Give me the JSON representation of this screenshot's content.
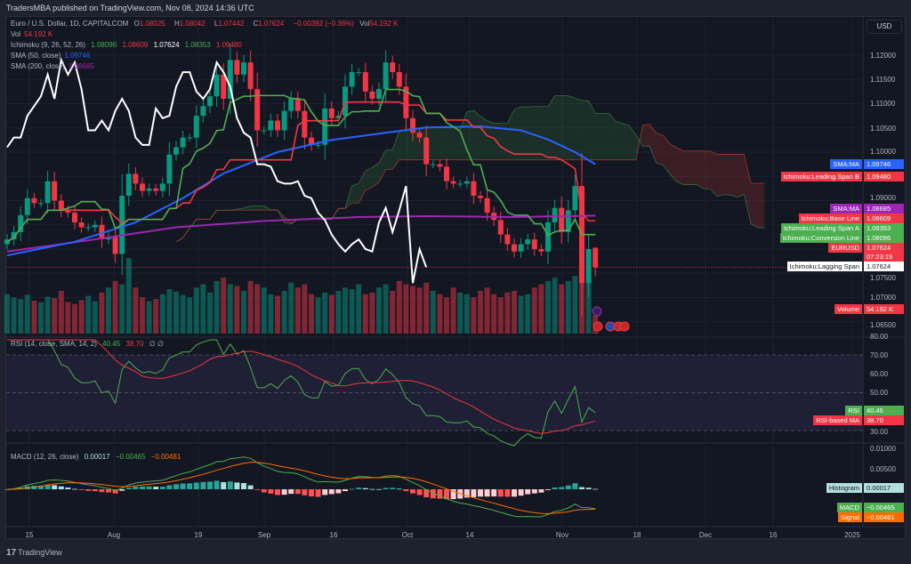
{
  "header": {
    "published": "TradersMBA published on TradingView.com, Nov 08, 2024 14:36 UTC"
  },
  "legend": {
    "symbol": "Euro / U.S. Dollar, 1D, CAPITALCOM",
    "o_label": "O",
    "o": "1.08025",
    "h_label": "H",
    "h": "1.08042",
    "l_label": "L",
    "l": "1.07442",
    "c_label": "C",
    "c": "1.07624",
    "change": "−0.00392 (−0.36%)",
    "vol_label": "Vol",
    "vol": "54.192 K",
    "vol_line_label": "Vol",
    "vol_line_value": "54.192 K",
    "ichimoku_label": "Ichimoku (9, 26, 52, 26)",
    "ichimoku_values": [
      "1.08096",
      "1.08609",
      "1.07624",
      "1.08353",
      "1.09480"
    ],
    "sma50_label": "SMA (50, close)",
    "sma50": "1.09746",
    "sma200_label": "SMA (200, close)",
    "sma200": "1.08685",
    "rsi_label": "RSI (14, close, SMA, 14, 2)",
    "rsi": "40.45",
    "rsi_ma": "38.70",
    "rsi_extra": "∅ ∅",
    "macd_label": "MACD (12, 26, close)",
    "macd_hist": "0.00017",
    "macd": "−0.00465",
    "macd_signal": "−0.00481"
  },
  "currency": "USD",
  "colors": {
    "up": "#089981",
    "down": "#f23645",
    "sma50": "#2962ff",
    "sma200": "#9c27b0",
    "conversion": "#4caf50",
    "base": "#f23645",
    "lagging": "#ffffff",
    "rsi": "#4caf50",
    "rsi_ma": "#f23645",
    "macd": "#4caf50",
    "signal": "#ff6d00"
  },
  "price_tags": [
    {
      "label": "SMA:MA",
      "value": "1.09746",
      "color": "#2962ff"
    },
    {
      "label": "Ichimoku:Leading Span B",
      "value": "1.09480",
      "color": "#f23645"
    },
    {
      "label": "SMA:MA",
      "value": "1.08685",
      "color": "#9c27b0"
    },
    {
      "label": "Ichimoku:Base Line",
      "value": "1.08609",
      "color": "#f23645"
    },
    {
      "label": "Ichimoku:Leading Span A",
      "value": "1.08353",
      "color": "#4caf50"
    },
    {
      "label": "Ichimoku:Conversion Line",
      "value": "1.08096",
      "color": "#4caf50"
    },
    {
      "label": "EURUSD",
      "value": "1.07624",
      "extra": "07:23:19",
      "color": "#f23645"
    },
    {
      "label": "Ichimoku:Lagging Span",
      "value": "1.07624",
      "color": "#ffffff"
    },
    {
      "label": "Volume",
      "value": "54.192 K",
      "color": "#f23645"
    }
  ],
  "rsi_tags": [
    {
      "label": "RSI",
      "value": "40.45",
      "color": "#4caf50"
    },
    {
      "label": "RSI-based MA",
      "value": "38.70",
      "color": "#f23645"
    }
  ],
  "macd_tags": [
    {
      "label": "Histogram",
      "value": "0.00017",
      "color": "#b2dfdb"
    },
    {
      "label": "MACD",
      "value": "−0.00465",
      "color": "#4caf50"
    },
    {
      "label": "Signal",
      "value": "−0.00481",
      "color": "#ff6d00"
    }
  ],
  "price_axis": [
    "1.12000",
    "1.11500",
    "1.11000",
    "1.10500",
    "1.10000",
    "1.09000",
    "1.07500",
    "1.07000",
    "1.06500"
  ],
  "rsi_axis": [
    "80.00",
    "70.00",
    "60.00",
    "50.00",
    "30.00"
  ],
  "macd_axis": [
    "0.01000",
    "0.00500"
  ],
  "time_axis": [
    "15",
    "Aug",
    "19",
    "Sep",
    "16",
    "Oct",
    "14",
    "Nov",
    "18",
    "Dec",
    "16",
    "2025"
  ],
  "footer": {
    "brand": "TradingView",
    "logo": "17"
  },
  "chart_data": {
    "type": "candlestick",
    "title": "Euro / U.S. Dollar, 1D, CAPITALCOM",
    "x_start": "2024-07-10",
    "x_end": "2024-11-08",
    "interval": "1D",
    "ylim": [
      1.0625,
      1.1235
    ],
    "last_bar": {
      "open": 1.08025,
      "high": 1.08042,
      "low": 1.07442,
      "close": 1.07624
    },
    "closes": [
      1.082,
      1.0835,
      1.087,
      1.0905,
      1.0895,
      1.0895,
      1.094,
      1.09,
      1.088,
      1.0875,
      1.0855,
      1.0845,
      1.0845,
      1.085,
      1.082,
      1.0825,
      1.079,
      1.091,
      1.0955,
      1.0935,
      1.092,
      1.0925,
      1.092,
      1.0935,
      1.0995,
      1.101,
      1.103,
      1.103,
      1.1075,
      1.1095,
      1.1115,
      1.116,
      1.111,
      1.119,
      1.116,
      1.1185,
      1.113,
      1.1045,
      1.1045,
      1.1065,
      1.1045,
      1.1085,
      1.111,
      1.1085,
      1.103,
      1.1015,
      1.1015,
      1.109,
      1.107,
      1.1075,
      1.1135,
      1.1165,
      1.1165,
      1.1125,
      1.111,
      1.113,
      1.1185,
      1.1165,
      1.1135,
      1.107,
      1.104,
      1.103,
      1.0975,
      1.0975,
      1.097,
      1.094,
      1.0935,
      1.0935,
      1.094,
      1.091,
      1.0905,
      1.0875,
      1.086,
      1.083,
      1.081,
      1.0795,
      1.081,
      1.082,
      1.08,
      1.0795,
      1.0855,
      1.0885,
      1.0835,
      1.088,
      1.093,
      1.073,
      1.08,
      1.0762
    ],
    "volume_k": [
      120,
      110,
      105,
      118,
      100,
      95,
      112,
      108,
      130,
      96,
      90,
      102,
      115,
      98,
      125,
      140,
      160,
      150,
      230,
      140,
      110,
      98,
      105,
      120,
      135,
      128,
      118,
      110,
      140,
      150,
      125,
      160,
      170,
      150,
      145,
      130,
      160,
      150,
      140,
      120,
      115,
      130,
      155,
      140,
      150,
      120,
      110,
      125,
      118,
      130,
      140,
      135,
      150,
      120,
      125,
      140,
      150,
      130,
      160,
      150,
      145,
      140,
      155,
      130,
      120,
      110,
      140,
      125,
      120,
      110,
      130,
      140,
      120,
      110,
      125,
      130,
      115,
      120,
      140,
      150,
      160,
      170,
      150,
      160,
      175,
      200,
      160,
      54.192
    ],
    "sma50_points": [
      [
        0,
        1.0787
      ],
      [
        10,
        1.0815
      ],
      [
        19,
        1.0855
      ],
      [
        26,
        1.0905
      ],
      [
        32,
        1.0956
      ],
      [
        40,
        1.1
      ],
      [
        48,
        1.1025
      ],
      [
        56,
        1.104
      ],
      [
        62,
        1.1051
      ],
      [
        70,
        1.1053
      ],
      [
        76,
        1.1045
      ],
      [
        80,
        1.1026
      ],
      [
        84,
        1.1
      ],
      [
        87,
        1.0975
      ]
    ],
    "sma200_points": [
      [
        0,
        1.0795
      ],
      [
        12,
        1.0818
      ],
      [
        25,
        1.0845
      ],
      [
        38,
        1.0858
      ],
      [
        52,
        1.0866
      ],
      [
        62,
        1.0868
      ],
      [
        75,
        1.0866
      ],
      [
        87,
        1.0869
      ]
    ],
    "rsi_levels": [
      70,
      50,
      30
    ],
    "ichimoku": {
      "conversion": 9,
      "base": 26,
      "span_b": 52,
      "displacement": 26
    },
    "rsi_params": {
      "length": 14,
      "ma_length": 14
    },
    "macd_params": {
      "fast": 12,
      "slow": 26,
      "signal": 9
    }
  }
}
